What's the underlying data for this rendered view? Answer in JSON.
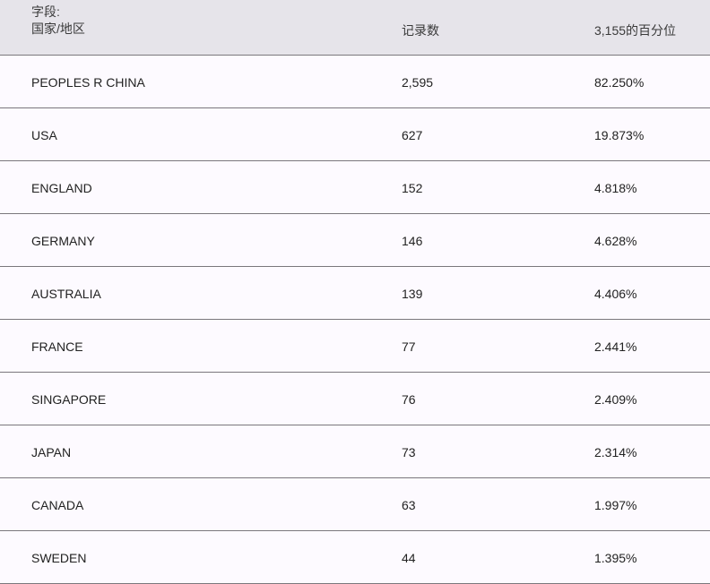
{
  "header": {
    "field_label": "字段:",
    "field_name": "国家/地区",
    "count": "记录数",
    "percent": "3,155的百分位"
  },
  "rows": [
    {
      "country": "PEOPLES R CHINA",
      "count": "2,595",
      "percent": "82.250%"
    },
    {
      "country": "USA",
      "count": "627",
      "percent": "19.873%"
    },
    {
      "country": "ENGLAND",
      "count": "152",
      "percent": "4.818%"
    },
    {
      "country": "GERMANY",
      "count": "146",
      "percent": "4.628%"
    },
    {
      "country": "AUSTRALIA",
      "count": "139",
      "percent": "4.406%"
    },
    {
      "country": "FRANCE",
      "count": "77",
      "percent": "2.441%"
    },
    {
      "country": "SINGAPORE",
      "count": "76",
      "percent": "2.409%"
    },
    {
      "country": "JAPAN",
      "count": "73",
      "percent": "2.314%"
    },
    {
      "country": "CANADA",
      "count": "63",
      "percent": "1.997%"
    },
    {
      "country": "SWEDEN",
      "count": "44",
      "percent": "1.395%"
    }
  ]
}
